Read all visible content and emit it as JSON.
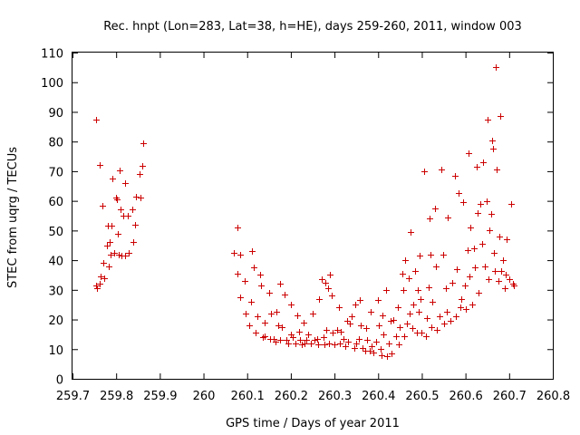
{
  "chart_data": {
    "type": "scatter",
    "title": "Rec. hnpt (Lon=283, Lat=38, h=HE), days 259-260, 2011, window 003",
    "xlabel": "GPS time / Days of year 2011",
    "ylabel": "STEC from uqrg / TECUs",
    "xlim": [
      259.7,
      260.8
    ],
    "ylim": [
      0,
      110
    ],
    "xticks": [
      "259.7",
      "259.8",
      "259.9",
      "260",
      "260.1",
      "260.2",
      "260.3",
      "260.4",
      "260.5",
      "260.6",
      "260.7",
      "260.8"
    ],
    "yticks": [
      "0",
      "10",
      "20",
      "30",
      "40",
      "50",
      "60",
      "70",
      "80",
      "90",
      "100",
      "110"
    ],
    "marker": "+",
    "color": "#cc0000",
    "grid": false,
    "series": [
      {
        "points": [
          [
            259.753,
            87.5
          ],
          [
            259.754,
            31.5
          ],
          [
            259.756,
            30.5
          ],
          [
            259.762,
            72.2
          ],
          [
            259.763,
            32.2
          ],
          [
            259.765,
            34.5
          ],
          [
            259.769,
            58.5
          ],
          [
            259.77,
            39.2
          ],
          [
            259.773,
            34.0
          ],
          [
            259.779,
            44.8
          ],
          [
            259.78,
            51.5
          ],
          [
            259.782,
            37.8
          ],
          [
            259.786,
            46.2
          ],
          [
            259.788,
            42.0
          ],
          [
            259.79,
            51.5
          ],
          [
            259.792,
            67.5
          ],
          [
            259.795,
            42.5
          ],
          [
            259.8,
            61.2
          ],
          [
            259.802,
            60.5
          ],
          [
            259.803,
            48.8
          ],
          [
            259.806,
            42.0
          ],
          [
            259.808,
            70.2
          ],
          [
            259.81,
            57.0
          ],
          [
            259.812,
            41.5
          ],
          [
            259.817,
            55.0
          ],
          [
            259.82,
            66.0
          ],
          [
            259.82,
            41.5
          ],
          [
            259.826,
            55.0
          ],
          [
            259.828,
            42.5
          ],
          [
            259.838,
            57.0
          ],
          [
            259.84,
            46.2
          ],
          [
            259.844,
            52.0
          ],
          [
            259.846,
            61.5
          ],
          [
            259.854,
            69.0
          ],
          [
            259.855,
            61.2
          ],
          [
            259.86,
            71.8
          ],
          [
            259.862,
            79.5
          ],
          [
            260.07,
            42.5
          ],
          [
            260.077,
            51.0
          ],
          [
            260.078,
            35.5
          ],
          [
            260.083,
            27.5
          ],
          [
            260.085,
            41.8
          ],
          [
            260.095,
            33.0
          ],
          [
            260.097,
            22.0
          ],
          [
            260.105,
            18.0
          ],
          [
            260.108,
            26.0
          ],
          [
            260.11,
            43.0
          ],
          [
            260.115,
            37.5
          ],
          [
            260.12,
            15.5
          ],
          [
            260.123,
            21.0
          ],
          [
            260.13,
            35.0
          ],
          [
            260.132,
            31.5
          ],
          [
            260.135,
            14.0
          ],
          [
            260.14,
            19.0
          ],
          [
            260.14,
            14.5
          ],
          [
            260.15,
            29.0
          ],
          [
            260.152,
            13.5
          ],
          [
            260.155,
            22.0
          ],
          [
            260.16,
            13.5
          ],
          [
            260.165,
            12.5
          ],
          [
            260.168,
            22.5
          ],
          [
            260.172,
            18.0
          ],
          [
            260.175,
            13.0
          ],
          [
            260.175,
            32.0
          ],
          [
            260.18,
            17.5
          ],
          [
            260.185,
            28.5
          ],
          [
            260.19,
            13.0
          ],
          [
            260.195,
            12.0
          ],
          [
            260.2,
            15.0
          ],
          [
            260.2,
            25.0
          ],
          [
            260.205,
            14.0
          ],
          [
            260.21,
            12.0
          ],
          [
            260.215,
            21.5
          ],
          [
            260.218,
            16.0
          ],
          [
            260.22,
            13.0
          ],
          [
            260.225,
            11.5
          ],
          [
            260.23,
            19.0
          ],
          [
            260.232,
            12.0
          ],
          [
            260.235,
            13.0
          ],
          [
            260.24,
            15.0
          ],
          [
            260.245,
            12.0
          ],
          [
            260.25,
            22.0
          ],
          [
            260.255,
            13.0
          ],
          [
            260.26,
            13.5
          ],
          [
            260.262,
            11.5
          ],
          [
            260.265,
            27.0
          ],
          [
            260.27,
            33.5
          ],
          [
            260.275,
            14.0
          ],
          [
            260.278,
            11.5
          ],
          [
            260.28,
            32.5
          ],
          [
            260.282,
            16.5
          ],
          [
            260.285,
            30.5
          ],
          [
            260.288,
            12.0
          ],
          [
            260.29,
            35.0
          ],
          [
            260.293,
            28.0
          ],
          [
            260.295,
            15.5
          ],
          [
            260.3,
            11.5
          ],
          [
            260.305,
            16.5
          ],
          [
            260.31,
            24.0
          ],
          [
            260.312,
            12.0
          ],
          [
            260.315,
            16.0
          ],
          [
            260.32,
            13.5
          ],
          [
            260.325,
            11.0
          ],
          [
            260.328,
            19.5
          ],
          [
            260.33,
            12.5
          ],
          [
            260.335,
            18.5
          ],
          [
            260.34,
            21.0
          ],
          [
            260.345,
            10.5
          ],
          [
            260.348,
            25.0
          ],
          [
            260.35,
            12.0
          ],
          [
            260.355,
            13.5
          ],
          [
            260.358,
            26.5
          ],
          [
            260.36,
            18.0
          ],
          [
            260.365,
            10.5
          ],
          [
            260.37,
            9.5
          ],
          [
            260.372,
            17.0
          ],
          [
            260.375,
            13.0
          ],
          [
            260.38,
            9.5
          ],
          [
            260.383,
            22.5
          ],
          [
            260.385,
            11.0
          ],
          [
            260.39,
            9.0
          ],
          [
            260.395,
            12.5
          ],
          [
            260.4,
            26.5
          ],
          [
            260.402,
            18.0
          ],
          [
            260.405,
            10.0
          ],
          [
            260.408,
            8.0
          ],
          [
            260.41,
            21.5
          ],
          [
            260.412,
            15.0
          ],
          [
            260.418,
            30.0
          ],
          [
            260.42,
            7.5
          ],
          [
            260.425,
            12.0
          ],
          [
            260.428,
            19.5
          ],
          [
            260.43,
            8.5
          ],
          [
            260.435,
            20.0
          ],
          [
            260.44,
            14.5
          ],
          [
            260.445,
            24.0
          ],
          [
            260.448,
            11.5
          ],
          [
            260.45,
            17.5
          ],
          [
            260.455,
            35.5
          ],
          [
            260.458,
            30.0
          ],
          [
            260.46,
            14.5
          ],
          [
            260.462,
            40.0
          ],
          [
            260.465,
            18.5
          ],
          [
            260.47,
            34.0
          ],
          [
            260.472,
            22.0
          ],
          [
            260.475,
            49.5
          ],
          [
            260.478,
            17.0
          ],
          [
            260.48,
            25.0
          ],
          [
            260.485,
            36.5
          ],
          [
            260.488,
            15.5
          ],
          [
            260.49,
            30.0
          ],
          [
            260.492,
            22.5
          ],
          [
            260.495,
            41.5
          ],
          [
            260.498,
            27.0
          ],
          [
            260.5,
            15.5
          ],
          [
            260.505,
            70.0
          ],
          [
            260.51,
            14.5
          ],
          [
            260.512,
            20.5
          ],
          [
            260.515,
            31.0
          ],
          [
            260.518,
            54.0
          ],
          [
            260.52,
            42.0
          ],
          [
            260.522,
            17.5
          ],
          [
            260.525,
            26.0
          ],
          [
            260.53,
            57.5
          ],
          [
            260.532,
            38.0
          ],
          [
            260.535,
            16.5
          ],
          [
            260.54,
            21.0
          ],
          [
            260.545,
            70.5
          ],
          [
            260.548,
            42.0
          ],
          [
            260.55,
            18.5
          ],
          [
            260.555,
            30.5
          ],
          [
            260.558,
            22.5
          ],
          [
            260.56,
            54.5
          ],
          [
            260.565,
            19.5
          ],
          [
            260.57,
            32.5
          ],
          [
            260.575,
            68.5
          ],
          [
            260.578,
            21.0
          ],
          [
            260.58,
            37.0
          ],
          [
            260.585,
            62.5
          ],
          [
            260.588,
            24.0
          ],
          [
            260.59,
            27.0
          ],
          [
            260.595,
            59.5
          ],
          [
            260.598,
            31.5
          ],
          [
            260.6,
            23.5
          ],
          [
            260.605,
            43.5
          ],
          [
            260.608,
            76.0
          ],
          [
            260.61,
            34.5
          ],
          [
            260.612,
            51.0
          ],
          [
            260.615,
            25.0
          ],
          [
            260.62,
            44.0
          ],
          [
            260.622,
            37.5
          ],
          [
            260.625,
            71.5
          ],
          [
            260.628,
            56.0
          ],
          [
            260.63,
            29.0
          ],
          [
            260.635,
            59.0
          ],
          [
            260.638,
            45.5
          ],
          [
            260.64,
            73.0
          ],
          [
            260.645,
            38.0
          ],
          [
            260.648,
            60.0
          ],
          [
            260.65,
            87.5
          ],
          [
            260.652,
            33.5
          ],
          [
            260.655,
            50.0
          ],
          [
            260.658,
            55.5
          ],
          [
            260.66,
            80.5
          ],
          [
            260.662,
            77.5
          ],
          [
            260.665,
            42.5
          ],
          [
            260.668,
            36.5
          ],
          [
            260.67,
            105.0
          ],
          [
            260.672,
            70.5
          ],
          [
            260.675,
            33.0
          ],
          [
            260.678,
            48.0
          ],
          [
            260.68,
            88.5
          ],
          [
            260.682,
            36.5
          ],
          [
            260.685,
            40.0
          ],
          [
            260.69,
            30.5
          ],
          [
            260.692,
            35.0
          ],
          [
            260.695,
            47.0
          ],
          [
            260.7,
            33.5
          ],
          [
            260.705,
            59.0
          ],
          [
            260.708,
            32.0
          ],
          [
            260.71,
            31.5
          ]
        ]
      }
    ]
  }
}
